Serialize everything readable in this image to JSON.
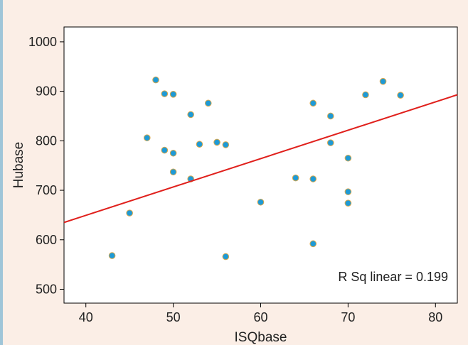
{
  "chart_data": {
    "type": "scatter",
    "title": "",
    "xlabel": "ISQbase",
    "ylabel": "Hubase",
    "xlim": [
      37.5,
      82.5
    ],
    "ylim": [
      472,
      1030
    ],
    "xticks": [
      40,
      50,
      60,
      70,
      80
    ],
    "yticks": [
      500,
      600,
      700,
      800,
      900,
      1000
    ],
    "grid": false,
    "points": [
      {
        "x": 43,
        "y": 568
      },
      {
        "x": 45,
        "y": 654
      },
      {
        "x": 60,
        "y": 676
      },
      {
        "x": 64,
        "y": 725
      },
      {
        "x": 66,
        "y": 723
      },
      {
        "x": 66,
        "y": 876
      },
      {
        "x": 66,
        "y": 592
      },
      {
        "x": 47,
        "y": 806
      },
      {
        "x": 48,
        "y": 923
      },
      {
        "x": 49,
        "y": 895
      },
      {
        "x": 49,
        "y": 781
      },
      {
        "x": 50,
        "y": 894
      },
      {
        "x": 50,
        "y": 775
      },
      {
        "x": 50,
        "y": 737
      },
      {
        "x": 52,
        "y": 853
      },
      {
        "x": 52,
        "y": 723
      },
      {
        "x": 53,
        "y": 793
      },
      {
        "x": 54,
        "y": 876
      },
      {
        "x": 55,
        "y": 797
      },
      {
        "x": 56,
        "y": 792
      },
      {
        "x": 56,
        "y": 566
      },
      {
        "x": 68,
        "y": 850
      },
      {
        "x": 68,
        "y": 796
      },
      {
        "x": 70,
        "y": 765
      },
      {
        "x": 70,
        "y": 697
      },
      {
        "x": 70,
        "y": 674
      },
      {
        "x": 72,
        "y": 893
      },
      {
        "x": 74,
        "y": 920
      },
      {
        "x": 76,
        "y": 892
      }
    ],
    "fit_line": {
      "x": [
        37.5,
        82.5
      ],
      "y": [
        635,
        893
      ]
    },
    "annotation": "R Sq linear = 0.199",
    "colors": {
      "background": "#fbeee6",
      "plot_background": "#ffffff",
      "marker_fill": "#1e9ad6",
      "marker_edge": "#d9a74a",
      "fit_line": "#e0201c",
      "left_border": "#9fc5d8"
    }
  }
}
